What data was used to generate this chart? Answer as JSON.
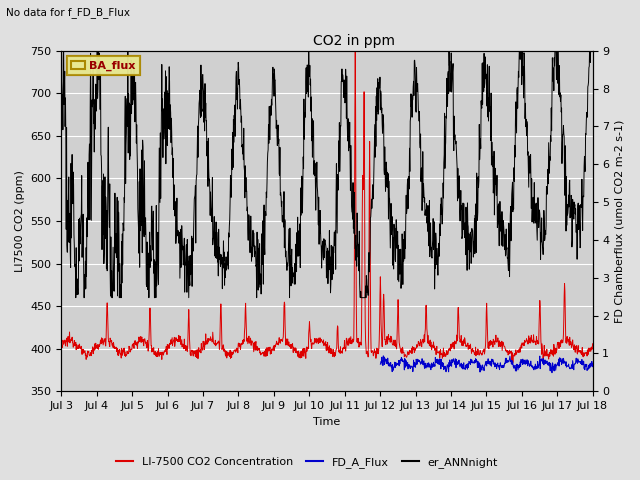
{
  "title": "CO2 in ppm",
  "top_left_note": "No data for f_FD_B_Flux",
  "legend_label": "BA_flux",
  "ylabel_left": "LI7500 CO2 (ppm)",
  "ylabel_right": "FD Chamberflux (umol CO2 m-2 s-1)",
  "xlabel": "Time",
  "ylim_left": [
    350,
    750
  ],
  "ylim_right": [
    0.0,
    9.0
  ],
  "yticks_left": [
    350,
    400,
    450,
    500,
    550,
    600,
    650,
    700,
    750
  ],
  "yticks_right": [
    0.0,
    1.0,
    2.0,
    3.0,
    4.0,
    5.0,
    6.0,
    7.0,
    8.0,
    9.0
  ],
  "xtick_labels": [
    "Jul 3",
    "Jul 4",
    "Jul 5",
    "Jul 6",
    "Jul 7",
    "Jul 8",
    "Jul 9",
    "Jul 10",
    "Jul 11",
    "Jul 12",
    "Jul 13",
    "Jul 14",
    "Jul 15",
    "Jul 16",
    "Jul 17",
    "Jul 18"
  ],
  "line_red_label": "LI-7500 CO2 Concentration",
  "line_blue_label": "FD_A_Flux",
  "line_black_label": "er_ANNnight",
  "line_red_color": "#dd0000",
  "line_blue_color": "#0000cc",
  "line_black_color": "#000000",
  "bg_color": "#e0e0e0",
  "plot_bg_color": "#d0d0d0",
  "grid_color": "#ffffff",
  "legend_box_color": "#e8e890",
  "legend_box_edge": "#aa8800"
}
